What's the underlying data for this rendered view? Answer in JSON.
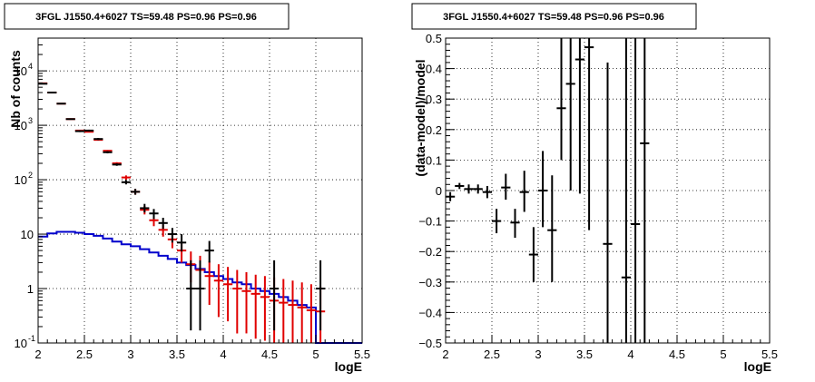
{
  "chart_data": [
    {
      "type": "scatter",
      "title": "3FGL J1550.4+6027 TS=59.48 PS=0.96 PS=0.96",
      "xlabel": "logE",
      "ylabel": "Nb of counts",
      "xlim": [
        2,
        5.5
      ],
      "ylim": [
        0.1,
        40000
      ],
      "yscale": "log",
      "grid": true,
      "xticks": [
        "2",
        "2.5",
        "3",
        "3.5",
        "4",
        "4.5",
        "5",
        "5.5"
      ],
      "yticks": [
        {
          "value": 0.1,
          "label": "10",
          "exp": "-1"
        },
        {
          "value": 1,
          "label": "1",
          "exp": ""
        },
        {
          "value": 10,
          "label": "10",
          "exp": ""
        },
        {
          "value": 100,
          "label": "10",
          "exp": "2"
        },
        {
          "value": 1000,
          "label": "10",
          "exp": "3"
        },
        {
          "value": 10000,
          "label": "10",
          "exp": "4"
        }
      ],
      "colors": {
        "data": "#000000",
        "model": "#e00000",
        "background": "#0000cc"
      },
      "binwidth": 0.1,
      "series": [
        {
          "key": "data",
          "style": "points",
          "x": [
            2.05,
            2.15,
            2.25,
            2.35,
            2.45,
            2.55,
            2.65,
            2.75,
            2.85,
            2.95,
            3.05,
            3.15,
            3.25,
            3.35,
            3.45,
            3.55,
            3.65,
            3.75,
            3.85,
            3.95,
            4.05,
            4.15,
            4.25,
            4.35,
            4.45,
            4.55,
            4.65,
            4.75,
            4.85,
            4.95,
            5.05
          ],
          "y": [
            5800,
            4000,
            2500,
            1300,
            780,
            800,
            560,
            320,
            190,
            90,
            60,
            30,
            24,
            16,
            10,
            7,
            1,
            1,
            5,
            null,
            null,
            null,
            null,
            null,
            null,
            1,
            null,
            null,
            null,
            null,
            1
          ],
          "lo": [
            5700,
            3900,
            2450,
            1260,
            750,
            770,
            535,
            305,
            180,
            82,
            53,
            25,
            19,
            12.5,
            7,
            4.8,
            0.17,
            0.17,
            3,
            null,
            null,
            null,
            null,
            null,
            null,
            0.17,
            null,
            null,
            null,
            null,
            0.17
          ],
          "hi": [
            5900,
            4100,
            2550,
            1340,
            810,
            830,
            585,
            335,
            200,
            99,
            68,
            36,
            29,
            20,
            13,
            10,
            3.3,
            3.3,
            7.5,
            null,
            null,
            null,
            null,
            null,
            null,
            3.3,
            null,
            null,
            null,
            null,
            3.3
          ]
        },
        {
          "key": "model",
          "style": "points",
          "x": [
            2.05,
            2.15,
            2.25,
            2.35,
            2.45,
            2.55,
            2.65,
            2.75,
            2.85,
            2.95,
            3.05,
            3.15,
            3.25,
            3.35,
            3.45,
            3.55,
            3.65,
            3.75,
            3.85,
            3.95,
            4.05,
            4.15,
            4.25,
            4.35,
            4.45,
            4.55,
            4.65,
            4.75,
            4.85,
            4.95,
            5.05
          ],
          "y": [
            5900,
            4000,
            2500,
            1300,
            800,
            760,
            540,
            340,
            200,
            110,
            60,
            28,
            18,
            12,
            8,
            5,
            2.8,
            2.2,
            1.7,
            1.4,
            1.2,
            1.0,
            0.9,
            0.8,
            0.7,
            0.6,
            0.55,
            0.5,
            0.45,
            0.4,
            0.38
          ],
          "lo": [
            5800,
            3950,
            2450,
            1270,
            780,
            740,
            525,
            330,
            190,
            100,
            53,
            23,
            14,
            9,
            5.5,
            3,
            1.3,
            0.9,
            0.5,
            0.3,
            0.25,
            0.15,
            0.15,
            0.12,
            0.11,
            0.1,
            0.1,
            0.1,
            0.1,
            0.1,
            0.1
          ],
          "hi": [
            6000,
            4050,
            2550,
            1330,
            820,
            780,
            555,
            350,
            210,
            120,
            68,
            33,
            22,
            15,
            10.5,
            7,
            4.8,
            4,
            3.2,
            2.8,
            2.5,
            2.2,
            2.0,
            1.8,
            1.7,
            1.6,
            1.5,
            1.4,
            1.3,
            1.2,
            1.1
          ]
        },
        {
          "key": "background",
          "style": "step",
          "x": [
            2.0,
            2.1,
            2.2,
            2.3,
            2.4,
            2.5,
            2.6,
            2.7,
            2.8,
            2.9,
            3.0,
            3.1,
            3.2,
            3.3,
            3.4,
            3.5,
            3.6,
            3.7,
            3.8,
            3.9,
            4.0,
            4.1,
            4.2,
            4.3,
            4.4,
            4.5,
            4.6,
            4.7,
            4.8,
            4.9,
            5.0,
            5.1,
            5.2,
            5.3,
            5.4
          ],
          "y": [
            9,
            10.3,
            11,
            11,
            10.6,
            10,
            9.3,
            8.3,
            7.3,
            6.5,
            6,
            5.3,
            4.6,
            4,
            3.5,
            3,
            2.7,
            2.3,
            2,
            1.7,
            1.5,
            1.3,
            1.2,
            1.0,
            0.9,
            0.8,
            0.7,
            0.6,
            0.5,
            0.45,
            0.1,
            0.1,
            0.1,
            0.1,
            0.1
          ]
        }
      ]
    },
    {
      "type": "scatter",
      "title": "3FGL J1550.4+6027 TS=59.48 PS=0.96 PS=0.96",
      "xlabel": "logE",
      "ylabel": "(data-model)/model",
      "xlim": [
        2,
        5.5
      ],
      "ylim": [
        -0.5,
        0.5
      ],
      "grid": true,
      "xticks": [
        "2",
        "2.5",
        "3",
        "3.5",
        "4",
        "4.5",
        "5",
        "5.5"
      ],
      "yticks": [
        "0.5",
        "0.4",
        "0.3",
        "0.2",
        "0.1",
        "0",
        "−0.1",
        "−0.2",
        "−0.3",
        "−0.4",
        "−0.5"
      ],
      "binwidth": 0.1,
      "series": [
        {
          "key": "residual",
          "style": "points",
          "x": [
            2.05,
            2.15,
            2.25,
            2.35,
            2.45,
            2.55,
            2.65,
            2.75,
            2.85,
            2.95,
            3.05,
            3.15,
            3.25,
            3.35,
            3.45,
            3.55,
            3.75,
            3.95,
            4.05,
            4.15
          ],
          "y": [
            -0.02,
            0.015,
            0.005,
            0.005,
            -0.005,
            -0.1,
            0.01,
            -0.105,
            -0.005,
            -0.21,
            0.0,
            -0.13,
            0.27,
            0.35,
            0.43,
            0.47,
            -0.175,
            -0.285,
            -0.11,
            0.155
          ],
          "lo": [
            -0.035,
            0.005,
            -0.01,
            -0.01,
            -0.025,
            -0.14,
            -0.03,
            -0.155,
            -0.07,
            -0.3,
            -0.12,
            -0.3,
            0.1,
            0.0,
            -0.01,
            -0.13,
            -0.5,
            -0.5,
            -0.5,
            -0.5
          ],
          "hi": [
            -0.005,
            0.025,
            0.02,
            0.02,
            0.015,
            -0.06,
            0.055,
            -0.06,
            0.065,
            -0.12,
            0.13,
            0.05,
            0.5,
            0.5,
            0.5,
            0.5,
            0.42,
            0.5,
            0.5,
            0.5
          ]
        }
      ]
    }
  ]
}
